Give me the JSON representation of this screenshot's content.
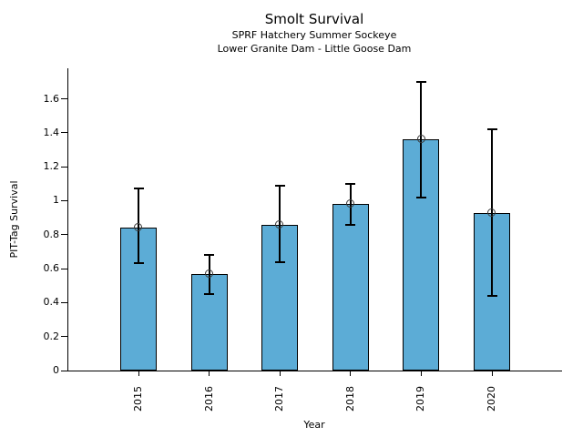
{
  "chart_data": {
    "type": "bar",
    "title": "Smolt Survival",
    "subtitle_lines": [
      "SPRF Hatchery Summer Sockeye",
      "Lower Granite Dam - Little Goose Dam"
    ],
    "categories": [
      "2015",
      "2016",
      "2017",
      "2018",
      "2019",
      "2020"
    ],
    "values": [
      0.84,
      0.57,
      0.86,
      0.98,
      1.36,
      0.93
    ],
    "error_low": [
      0.63,
      0.45,
      0.64,
      0.86,
      1.02,
      0.44
    ],
    "error_high": [
      1.07,
      0.68,
      1.09,
      1.1,
      1.7,
      1.42
    ],
    "xlabel": "Year",
    "ylabel": "PIT-Tag Survival",
    "ylim": [
      0,
      1.78
    ],
    "yticks": [
      0,
      0.2,
      0.4,
      0.6,
      0.8,
      1,
      1.2,
      1.4,
      1.6
    ],
    "ytick_labels": [
      "0",
      "0.2",
      "0.4",
      "0.6",
      "0.8",
      "1",
      "1.2",
      "1.4",
      "1.6"
    ],
    "grid": false,
    "legend": "none",
    "marker_style": "open-circle",
    "colors": {
      "bar_fill": "#5CACD6",
      "bar_edge": "#000000",
      "error_bar": "#000000",
      "marker_edge": "#3a3a3a",
      "background": "#ffffff",
      "text": "#000000"
    }
  }
}
